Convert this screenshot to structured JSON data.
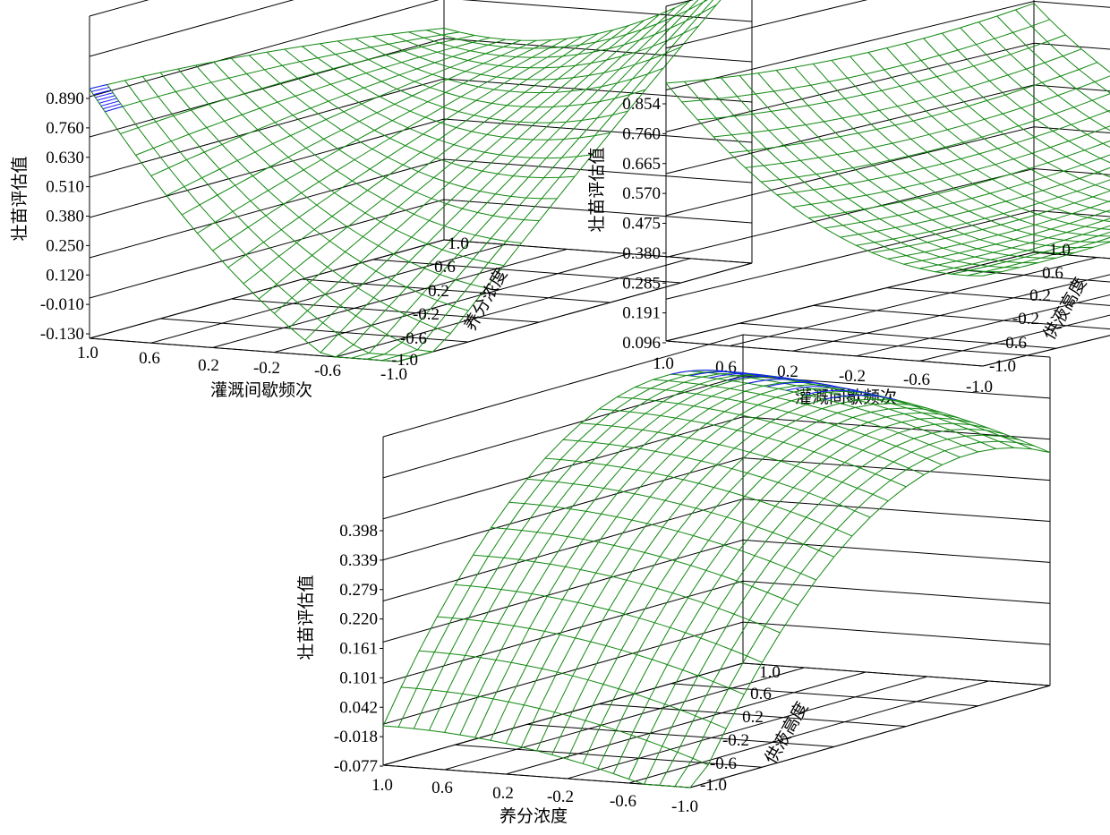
{
  "chart_data": [
    {
      "type": "surface",
      "x_label": "灌溉间歇频次",
      "y_label": "养分浓度",
      "z_label": "壮苗评估值",
      "x_ticks": [
        "1.0",
        "0.6",
        "0.2",
        "-0.2",
        "-0.6",
        "-1.0"
      ],
      "y_ticks": [
        "1.0",
        "0.6",
        "0.2",
        "-0.2",
        "-0.6",
        "-1.0"
      ],
      "z_ticks": [
        "0.890",
        "0.760",
        "0.630",
        "0.510",
        "0.380",
        "0.250",
        "0.120",
        "-0.010",
        "-0.130"
      ],
      "x_range": [
        -1,
        1
      ],
      "y_range": [
        -1,
        1
      ],
      "z_range": [
        -0.13,
        0.89
      ],
      "surface_color": "#118811",
      "highlight_color": "#1a1aff"
    },
    {
      "type": "surface",
      "x_label": "灌溉间歇频次",
      "y_label": "供液高度",
      "z_label": "壮苗评估值",
      "x_ticks": [
        "1.0",
        "0.6",
        "0.2",
        "-0.2",
        "-0.6",
        "-1.0"
      ],
      "y_ticks": [
        "1.0",
        "0.6",
        "0.2",
        "-0.2",
        "-0.6",
        "-1.0"
      ],
      "z_ticks": [
        "0.854",
        "0.760",
        "0.665",
        "0.570",
        "0.475",
        "0.380",
        "0.285",
        "0.191",
        "0.096"
      ],
      "x_range": [
        -1,
        1
      ],
      "y_range": [
        -1,
        1
      ],
      "z_range": [
        0.096,
        0.854
      ],
      "surface_color": "#118811",
      "highlight_color": "#1a1aff"
    },
    {
      "type": "surface",
      "x_label": "养分浓度",
      "y_label": "供液高度",
      "z_label": "壮苗评估值",
      "x_ticks": [
        "1.0",
        "0.6",
        "0.2",
        "-0.2",
        "-0.6",
        "-1.0"
      ],
      "y_ticks": [
        "1.0",
        "0.6",
        "0.2",
        "-0.2",
        "-0.6",
        "-1.0"
      ],
      "z_ticks": [
        "0.398",
        "0.339",
        "0.279",
        "0.220",
        "0.161",
        "0.101",
        "0.042",
        "-0.018",
        "-0.077"
      ],
      "x_range": [
        -1,
        1
      ],
      "y_range": [
        -1,
        1
      ],
      "z_range": [
        -0.077,
        0.398
      ],
      "surface_color": "#118811",
      "highlight_color": "#1a1aff"
    }
  ]
}
